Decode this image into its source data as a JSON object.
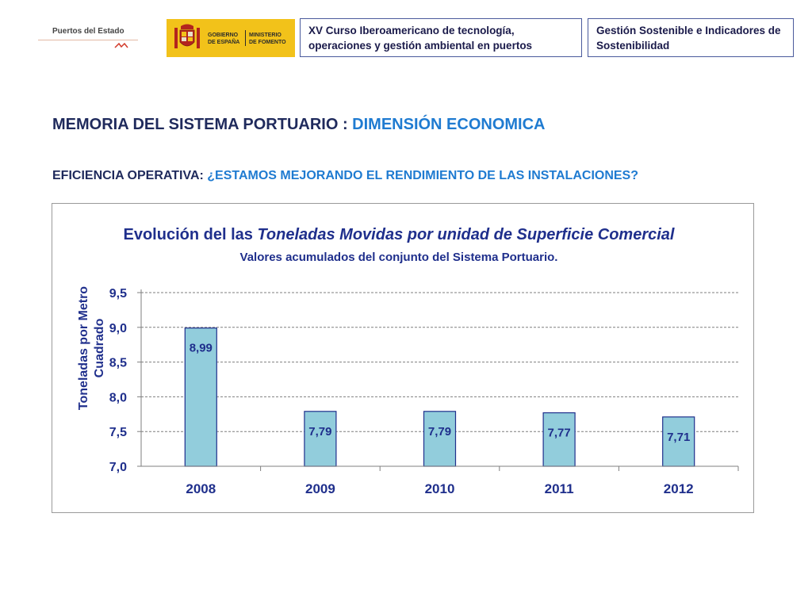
{
  "header": {
    "logo_puertos": "Puertos del Estado",
    "logo_gobierno": "GOBIERNO\nDE ESPAÑA",
    "logo_ministerio": "MINISTERIO\nDE FOMENTO",
    "course_box": "XV Curso Iberoamericano de tecnología, operaciones y gestión ambiental en puertos",
    "topic_box": "Gestión Sostenible e Indicadores de Sostenibilidad"
  },
  "slide": {
    "title_prefix": "MEMORIA DEL SISTEMA PORTUARIO : ",
    "title_highlight": "DIMENSIÓN ECONOMICA",
    "subtitle_prefix": "EFICIENCIA OPERATIVA: ",
    "subtitle_highlight": "¿ESTAMOS MEJORANDO EL RENDIMIENTO DE LAS INSTALACIONES?"
  },
  "colors": {
    "title_dark": "#1f2a5c",
    "title_accent": "#1f7bd1",
    "bar_fill": "#92cddc",
    "bar_stroke": "#1f2f8c",
    "chart_text": "#1f2f8c",
    "logo_yellow": "#f2c21a"
  },
  "chart_data": {
    "type": "bar",
    "title_part1": "Evolución del  las ",
    "title_part2": "Toneladas Movidas por unidad de Superficie Comercial",
    "subtitle": "Valores acumulados del conjunto del Sistema Portuario.",
    "ylabel_line1": "Toneladas por Metro",
    "ylabel_line2": "Cuadrado",
    "xlabel": "",
    "categories": [
      "2008",
      "2009",
      "2010",
      "2011",
      "2012"
    ],
    "values": [
      8.99,
      7.79,
      7.79,
      7.77,
      7.71
    ],
    "value_labels": [
      "8,99",
      "7,79",
      "7,79",
      "7,77",
      "7,71"
    ],
    "ylim": [
      7.0,
      9.5
    ],
    "yticks": [
      "7,0",
      "7,5",
      "8,0",
      "8,5",
      "9,0",
      "9,5"
    ],
    "ytick_values": [
      7.0,
      7.5,
      8.0,
      8.5,
      9.0,
      9.5
    ],
    "grid": true,
    "legend": "none"
  }
}
